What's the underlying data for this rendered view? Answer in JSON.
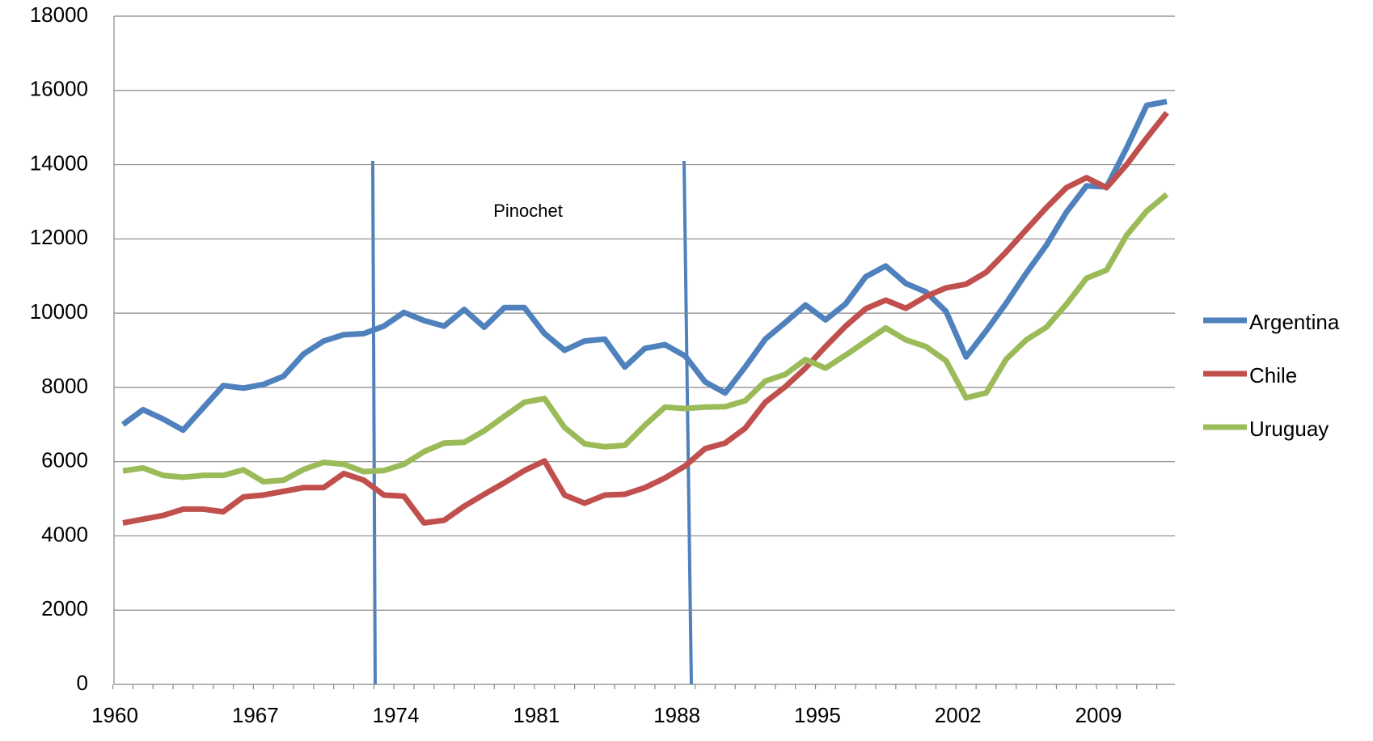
{
  "chart_data": {
    "type": "line",
    "categories": [
      "1960",
      null,
      null,
      null,
      null,
      null,
      null,
      "1967",
      null,
      null,
      null,
      null,
      null,
      null,
      "1974",
      null,
      null,
      null,
      null,
      null,
      null,
      "1981",
      null,
      null,
      null,
      null,
      null,
      null,
      "1988",
      null,
      null,
      null,
      null,
      null,
      null,
      "1995",
      null,
      null,
      null,
      null,
      null,
      null,
      "2002",
      null,
      null,
      null,
      null,
      null,
      null,
      "2009",
      null,
      null,
      null
    ],
    "series": [
      {
        "name": "Argentina",
        "color": "#4f81bd",
        "values": [
          7000,
          7400,
          7150,
          6850,
          7450,
          8050,
          7980,
          8080,
          8300,
          8900,
          9250,
          9420,
          9450,
          9650,
          10020,
          9800,
          9650,
          10100,
          9620,
          10150,
          10150,
          9450,
          9000,
          9250,
          9300,
          8550,
          9050,
          9150,
          8850,
          8150,
          7850,
          8550,
          9300,
          9750,
          10220,
          9820,
          10250,
          10980,
          11270,
          10800,
          10570,
          10050,
          8820,
          9520,
          10270,
          11080,
          11830,
          12720,
          13430,
          13400,
          14450,
          15600,
          15700
        ]
      },
      {
        "name": "Chile",
        "color": "#c0504d",
        "values": [
          4350,
          4450,
          4550,
          4720,
          4720,
          4650,
          5050,
          5100,
          5200,
          5300,
          5300,
          5680,
          5500,
          5100,
          5070,
          4350,
          4420,
          4800,
          5120,
          5430,
          5760,
          6020,
          5100,
          4880,
          5100,
          5120,
          5300,
          5560,
          5880,
          6350,
          6500,
          6900,
          7600,
          8020,
          8520,
          9100,
          9650,
          10120,
          10350,
          10130,
          10450,
          10680,
          10780,
          11100,
          11650,
          12250,
          12840,
          13380,
          13650,
          13380,
          14000,
          14720,
          15400
        ]
      },
      {
        "name": "Uruguay",
        "color": "#9bbb59",
        "values": [
          5750,
          5830,
          5630,
          5580,
          5630,
          5630,
          5780,
          5460,
          5500,
          5790,
          5980,
          5930,
          5730,
          5760,
          5930,
          6270,
          6500,
          6520,
          6830,
          7220,
          7600,
          7700,
          6920,
          6480,
          6400,
          6440,
          6980,
          7470,
          7430,
          7470,
          7480,
          7640,
          8170,
          8350,
          8750,
          8520,
          8870,
          9240,
          9600,
          9280,
          9100,
          8720,
          7720,
          7850,
          8760,
          9280,
          9620,
          10240,
          10940,
          11160,
          12100,
          12750,
          13200
        ]
      }
    ],
    "ylim": [
      0,
      18000
    ],
    "yticks": [
      0,
      2000,
      4000,
      6000,
      8000,
      10000,
      12000,
      14000,
      16000,
      18000
    ],
    "grid": true,
    "legend": "right",
    "annotation": "Pinochet"
  }
}
